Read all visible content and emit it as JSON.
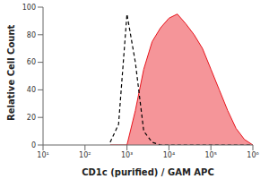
{
  "chart_data": {
    "type": "histogram",
    "x_label": "CD1c (purified) / GAM APC",
    "y_label": "Relative Cell Count",
    "log": "x",
    "xlim": [
      10,
      1000000
    ],
    "xticks": [
      {
        "value": 10,
        "label": "10¹"
      },
      {
        "value": 100,
        "label": "10²"
      },
      {
        "value": 1000,
        "label": "10³"
      },
      {
        "value": 10000,
        "label": "10⁴"
      },
      {
        "value": 100000,
        "label": "10⁵"
      },
      {
        "value": 1000000,
        "label": "10⁶"
      }
    ],
    "ylim": [
      0,
      100
    ],
    "yticks": [
      0,
      20,
      40,
      60,
      80,
      100
    ],
    "x": [
      398,
      631,
      1000,
      1585,
      2512,
      3981,
      6310,
      10000,
      15849,
      25119,
      39811,
      63096,
      100000,
      158489,
      251189,
      398107,
      630957,
      1000000
    ],
    "series": [
      {
        "type": "area",
        "color": "#e8141c",
        "values": [
          0,
          0,
          0,
          25,
          55,
          75,
          85,
          92,
          95,
          88,
          80,
          70,
          55,
          40,
          25,
          12,
          4,
          0
        ]
      },
      {
        "type": "line",
        "color": "#000000",
        "line_style": "dashed",
        "values": [
          2,
          15,
          95,
          60,
          10,
          2,
          0,
          0,
          0,
          0,
          0,
          0,
          0,
          0,
          0,
          0,
          0,
          0
        ]
      }
    ]
  }
}
